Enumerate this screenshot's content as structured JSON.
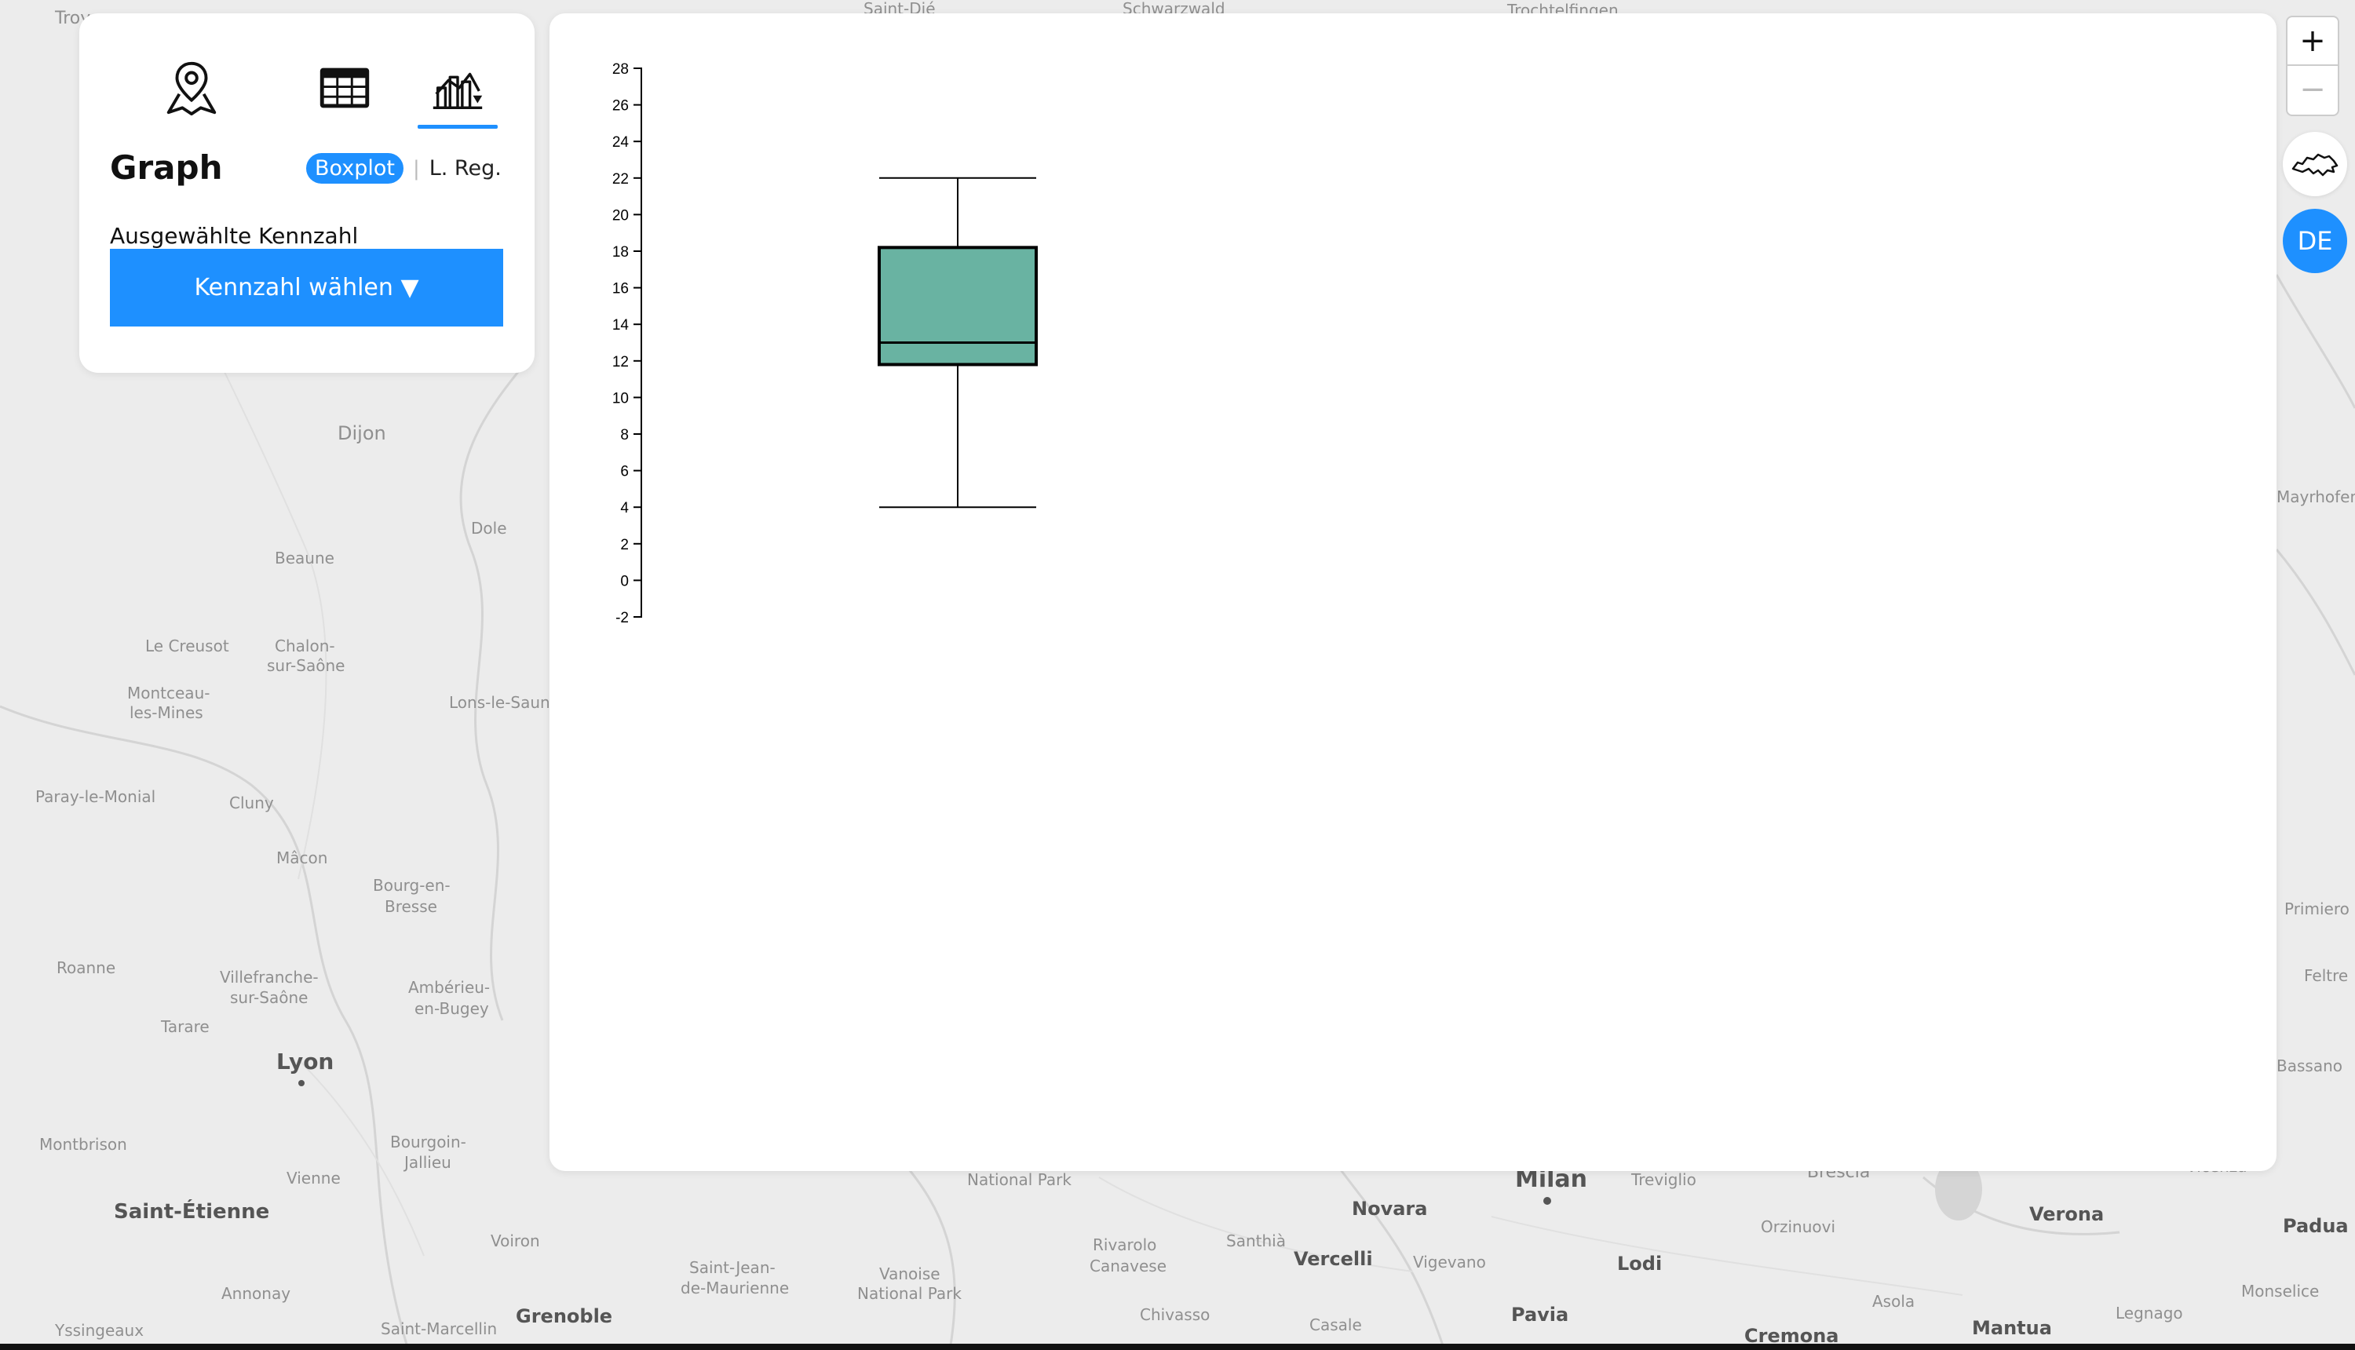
{
  "menu": {
    "tabs": [
      {
        "name": "map-tab",
        "icon": "map-pin-icon"
      },
      {
        "name": "table-tab",
        "icon": "table-icon"
      },
      {
        "name": "graph-tab",
        "icon": "chart-icon",
        "active": true
      }
    ],
    "title": "Graph",
    "modes": {
      "active": "Boxplot",
      "separator": "|",
      "other": "L. Reg."
    },
    "selected_label": "Ausgewählte Kennzahl",
    "select_button": "Kennzahl wählen ▼"
  },
  "controls": {
    "zoom_in": "+",
    "zoom_out": "−",
    "swiss_icon": "switzerland-outline-icon",
    "language": "DE"
  },
  "colors": {
    "accent": "#1e90ff",
    "box_fill": "#69b3a2"
  },
  "map_labels": [
    "Troyes",
    "Saint-Dié",
    "Schwarzwald",
    "Trochtelfingen",
    "Dijon",
    "Dole",
    "Beaune",
    "Le Creusot",
    "Chalon-sur-Saône",
    "Montceau-les-Mines",
    "Lons-le-Saunier",
    "Paray-le-Monial",
    "Cluny",
    "Mâcon",
    "Bourg-en-Bresse",
    "Roanne",
    "Villefranche-sur-Saône",
    "Ambérieu-en-Bugey",
    "Tarare",
    "Lyon",
    "Montbrison",
    "Bourgoin-Jallieu",
    "Vienne",
    "Saint-Étienne",
    "Voiron",
    "Annonay",
    "Yssingeaux",
    "Saint-Marcellin",
    "Grenoble",
    "Saint-Jean-de-Maurienne",
    "Vanoise National Park",
    "National Park",
    "Rivarolo Canavese",
    "Santhià",
    "Novara",
    "Vercelli",
    "Vigevano",
    "Milan",
    "Treviglio",
    "Brescia",
    "Lodi",
    "Orzinuovi",
    "Verona",
    "Padua",
    "Pavia",
    "Chivasso",
    "Casale",
    "Cremona",
    "Mantua",
    "Asola",
    "Legnago",
    "Monselice",
    "Mayrhofen",
    "Feltre",
    "Primiero",
    "Bassano",
    "Vicenza"
  ],
  "chart_data": {
    "type": "boxplot",
    "ylim": [
      -2,
      28
    ],
    "yticks": [
      -2,
      0,
      2,
      4,
      6,
      8,
      10,
      12,
      14,
      16,
      18,
      20,
      22,
      24,
      26,
      28
    ],
    "box": {
      "min": 4,
      "q1": 11.8,
      "median": 13,
      "q3": 18.2,
      "max": 22
    }
  }
}
